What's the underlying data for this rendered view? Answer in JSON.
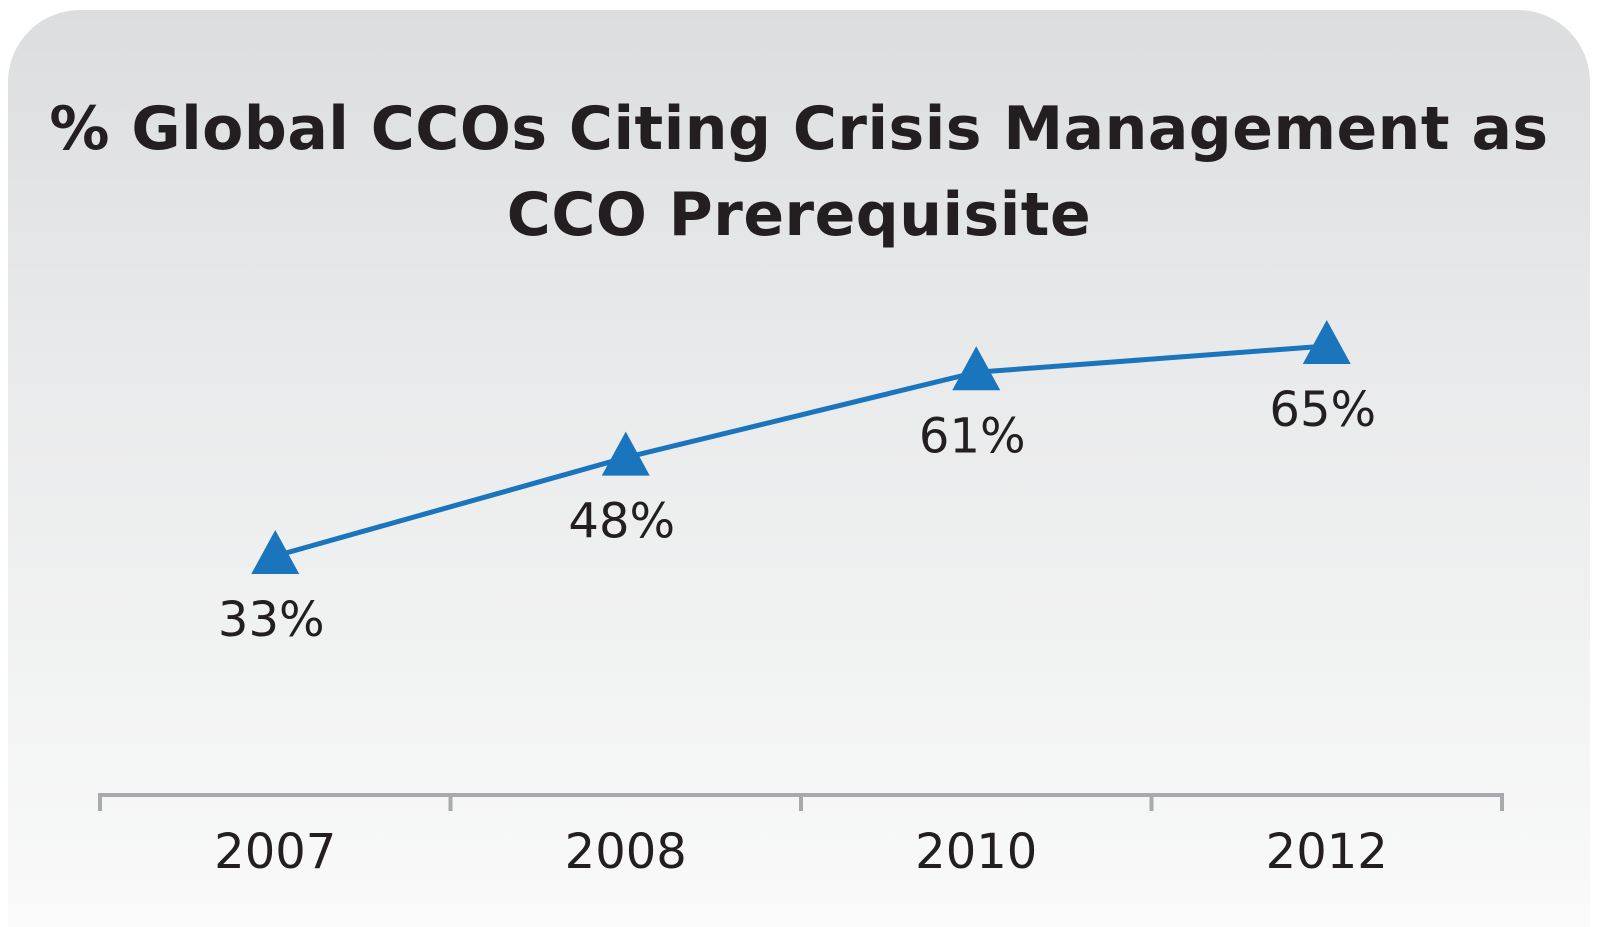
{
  "chart_data": {
    "type": "line",
    "title": "% Global CCOs Citing Crisis Management as CCO Prerequisite",
    "categories": [
      "2007",
      "2008",
      "2010",
      "2012"
    ],
    "values": [
      33,
      48,
      61,
      65
    ],
    "value_labels": [
      "33%",
      "48%",
      "61%",
      "65%"
    ],
    "unit": "%",
    "marker": "triangle",
    "grid": false,
    "legend": "none"
  },
  "colors": {
    "line": "#1b75bc",
    "text": "#231f20",
    "axis": "#a7a9ac"
  }
}
